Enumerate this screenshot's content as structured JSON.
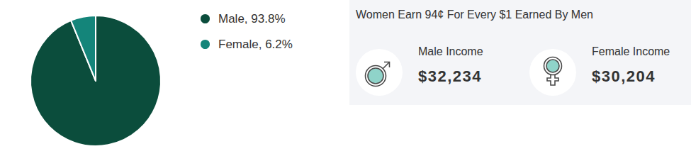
{
  "chart_data": {
    "type": "pie",
    "categories": [
      "Male, 93.8%",
      "Female, 6.2%"
    ],
    "values": [
      93.8,
      6.2
    ],
    "colors": [
      "#0b4d3c",
      "#14857a"
    ],
    "legend": "top-right"
  },
  "income_panel": {
    "title": "Women Earn 94¢ For Every $1 Earned By Men",
    "items": [
      {
        "label": "Male Income",
        "value": "$32,234"
      },
      {
        "label": "Female Income",
        "value": "$30,204"
      }
    ]
  }
}
